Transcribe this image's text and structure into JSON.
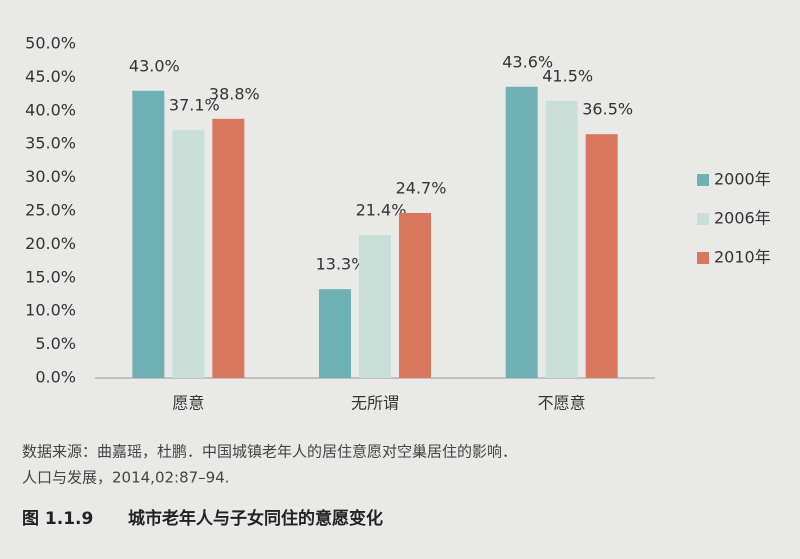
{
  "chart_data": {
    "type": "bar",
    "title": "城市老年人与子女同住的意愿变化",
    "figure_number": "图 1.1.9",
    "source_lines": [
      "数据来源：曲嘉瑶，杜鹏．中国城镇老年人的居住意愿对空巢居住的影响．",
      "人口与发展，2014,02:87–94."
    ],
    "categories": [
      "愿意",
      "无所谓",
      "不愿意"
    ],
    "series": [
      {
        "name": "2000年",
        "color": "#6fb0b7",
        "values": [
          43.0,
          13.3,
          43.6
        ],
        "value_labels": [
          "43.0%",
          "13.3%",
          "43.6%"
        ]
      },
      {
        "name": "2006年",
        "color": "#c8dfd8",
        "values": [
          37.1,
          21.4,
          41.5
        ],
        "value_labels": [
          "37.1%",
          "21.4%",
          "41.5%"
        ]
      },
      {
        "name": "2010年",
        "color": "#d9775d",
        "values": [
          38.8,
          24.7,
          36.5
        ],
        "value_labels": [
          "38.8%",
          "24.7%",
          "36.5%"
        ]
      }
    ],
    "ylim": [
      0,
      50
    ],
    "yticks": [
      {
        "value": 0,
        "label": "0.0%"
      },
      {
        "value": 5,
        "label": "5.0%"
      },
      {
        "value": 10,
        "label": "10.0%"
      },
      {
        "value": 15,
        "label": "15.0%"
      },
      {
        "value": 20,
        "label": "20.0%"
      },
      {
        "value": 25,
        "label": "25.0%"
      },
      {
        "value": 30,
        "label": "30.0%"
      },
      {
        "value": 35,
        "label": "35.0%"
      },
      {
        "value": 40,
        "label": "40.0%"
      },
      {
        "value": 45,
        "label": "45.0%"
      },
      {
        "value": 50,
        "label": "50.0%"
      }
    ],
    "legend_position": "right"
  }
}
